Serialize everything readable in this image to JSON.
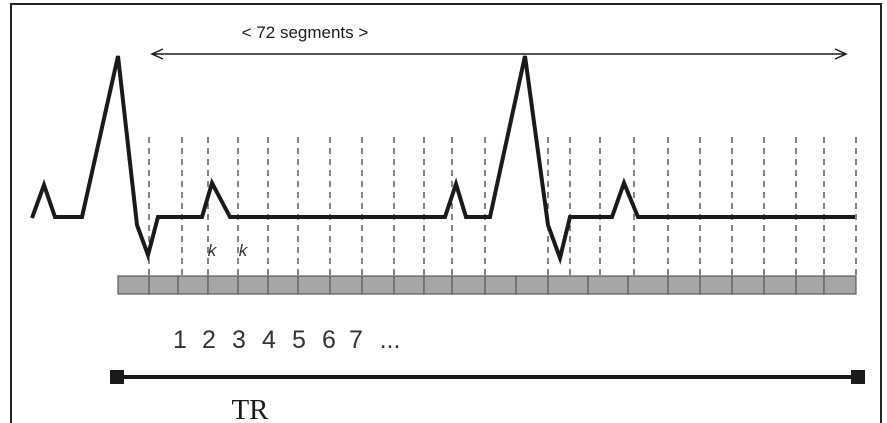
{
  "segments_label": "< 72 segments >",
  "segment_numbers": [
    "1",
    "2",
    "3",
    "4",
    "5",
    "6",
    "7",
    "..."
  ],
  "k_labels": [
    "k",
    "k"
  ],
  "tr_label": "TR",
  "colors": {
    "line": "#1a1a1a",
    "segment_fill": "#a6a6a6",
    "segment_stroke": "#5a5a5a",
    "dash": "#333333"
  }
}
